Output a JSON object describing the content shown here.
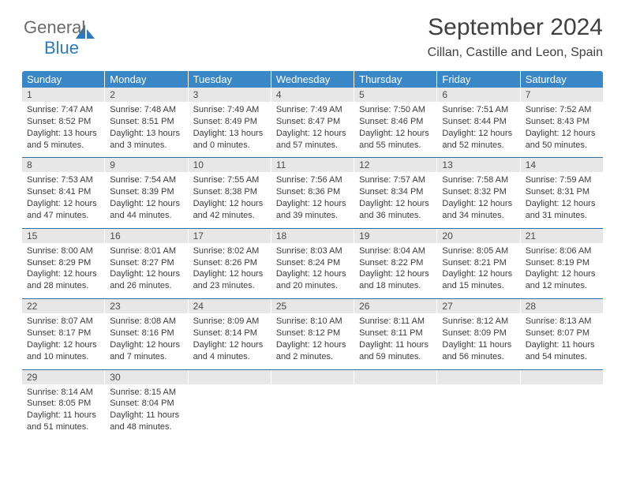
{
  "brand": {
    "text1": "General",
    "text2": "Blue"
  },
  "title": "September 2024",
  "location": "Cillan, Castille and Leon, Spain",
  "colors": {
    "header_bg": "#3a87c8",
    "header_fg": "#ffffff",
    "daynum_bg": "#e7e7e7",
    "text": "#3b3b3b",
    "rule": "#2f6fa6"
  },
  "dow": [
    "Sunday",
    "Monday",
    "Tuesday",
    "Wednesday",
    "Thursday",
    "Friday",
    "Saturday"
  ],
  "weeks": [
    [
      {
        "n": "1",
        "sr": "7:47 AM",
        "ss": "8:52 PM",
        "dl": "13 hours and 5 minutes."
      },
      {
        "n": "2",
        "sr": "7:48 AM",
        "ss": "8:51 PM",
        "dl": "13 hours and 3 minutes."
      },
      {
        "n": "3",
        "sr": "7:49 AM",
        "ss": "8:49 PM",
        "dl": "13 hours and 0 minutes."
      },
      {
        "n": "4",
        "sr": "7:49 AM",
        "ss": "8:47 PM",
        "dl": "12 hours and 57 minutes."
      },
      {
        "n": "5",
        "sr": "7:50 AM",
        "ss": "8:46 PM",
        "dl": "12 hours and 55 minutes."
      },
      {
        "n": "6",
        "sr": "7:51 AM",
        "ss": "8:44 PM",
        "dl": "12 hours and 52 minutes."
      },
      {
        "n": "7",
        "sr": "7:52 AM",
        "ss": "8:43 PM",
        "dl": "12 hours and 50 minutes."
      }
    ],
    [
      {
        "n": "8",
        "sr": "7:53 AM",
        "ss": "8:41 PM",
        "dl": "12 hours and 47 minutes."
      },
      {
        "n": "9",
        "sr": "7:54 AM",
        "ss": "8:39 PM",
        "dl": "12 hours and 44 minutes."
      },
      {
        "n": "10",
        "sr": "7:55 AM",
        "ss": "8:38 PM",
        "dl": "12 hours and 42 minutes."
      },
      {
        "n": "11",
        "sr": "7:56 AM",
        "ss": "8:36 PM",
        "dl": "12 hours and 39 minutes."
      },
      {
        "n": "12",
        "sr": "7:57 AM",
        "ss": "8:34 PM",
        "dl": "12 hours and 36 minutes."
      },
      {
        "n": "13",
        "sr": "7:58 AM",
        "ss": "8:32 PM",
        "dl": "12 hours and 34 minutes."
      },
      {
        "n": "14",
        "sr": "7:59 AM",
        "ss": "8:31 PM",
        "dl": "12 hours and 31 minutes."
      }
    ],
    [
      {
        "n": "15",
        "sr": "8:00 AM",
        "ss": "8:29 PM",
        "dl": "12 hours and 28 minutes."
      },
      {
        "n": "16",
        "sr": "8:01 AM",
        "ss": "8:27 PM",
        "dl": "12 hours and 26 minutes."
      },
      {
        "n": "17",
        "sr": "8:02 AM",
        "ss": "8:26 PM",
        "dl": "12 hours and 23 minutes."
      },
      {
        "n": "18",
        "sr": "8:03 AM",
        "ss": "8:24 PM",
        "dl": "12 hours and 20 minutes."
      },
      {
        "n": "19",
        "sr": "8:04 AM",
        "ss": "8:22 PM",
        "dl": "12 hours and 18 minutes."
      },
      {
        "n": "20",
        "sr": "8:05 AM",
        "ss": "8:21 PM",
        "dl": "12 hours and 15 minutes."
      },
      {
        "n": "21",
        "sr": "8:06 AM",
        "ss": "8:19 PM",
        "dl": "12 hours and 12 minutes."
      }
    ],
    [
      {
        "n": "22",
        "sr": "8:07 AM",
        "ss": "8:17 PM",
        "dl": "12 hours and 10 minutes."
      },
      {
        "n": "23",
        "sr": "8:08 AM",
        "ss": "8:16 PM",
        "dl": "12 hours and 7 minutes."
      },
      {
        "n": "24",
        "sr": "8:09 AM",
        "ss": "8:14 PM",
        "dl": "12 hours and 4 minutes."
      },
      {
        "n": "25",
        "sr": "8:10 AM",
        "ss": "8:12 PM",
        "dl": "12 hours and 2 minutes."
      },
      {
        "n": "26",
        "sr": "8:11 AM",
        "ss": "8:11 PM",
        "dl": "11 hours and 59 minutes."
      },
      {
        "n": "27",
        "sr": "8:12 AM",
        "ss": "8:09 PM",
        "dl": "11 hours and 56 minutes."
      },
      {
        "n": "28",
        "sr": "8:13 AM",
        "ss": "8:07 PM",
        "dl": "11 hours and 54 minutes."
      }
    ],
    [
      {
        "n": "29",
        "sr": "8:14 AM",
        "ss": "8:05 PM",
        "dl": "11 hours and 51 minutes."
      },
      {
        "n": "30",
        "sr": "8:15 AM",
        "ss": "8:04 PM",
        "dl": "11 hours and 48 minutes."
      },
      {
        "empty": true
      },
      {
        "empty": true
      },
      {
        "empty": true
      },
      {
        "empty": true
      },
      {
        "empty": true
      }
    ]
  ],
  "labels": {
    "sunrise": "Sunrise:",
    "sunset": "Sunset:",
    "daylight": "Daylight:"
  }
}
